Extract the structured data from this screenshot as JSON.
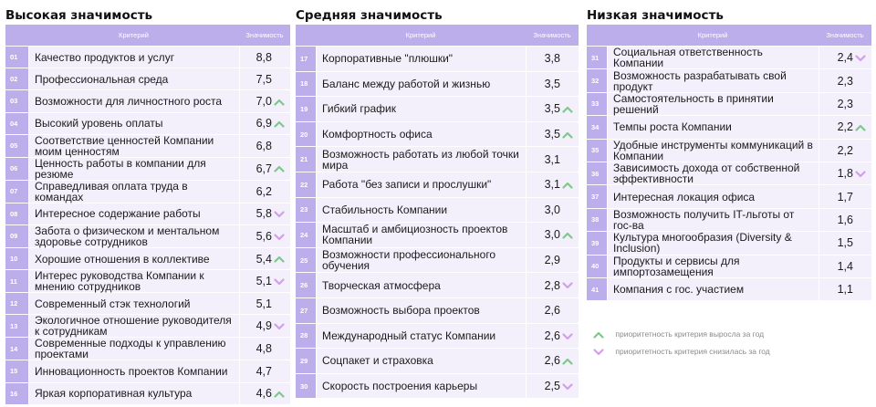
{
  "columns": {
    "criterion": "Критерий",
    "importance": "Значимость"
  },
  "colors": {
    "header": "#bcaeea",
    "row": "#f3f0fb",
    "up": "#7cc98a",
    "down": "#d29fe8"
  },
  "high": {
    "title": "Высокая значимость",
    "rows": [
      {
        "num": "01",
        "name": "Качество продуктов и услуг",
        "value": "8,8",
        "trend": ""
      },
      {
        "num": "02",
        "name": "Профессиональная среда",
        "value": "7,5",
        "trend": ""
      },
      {
        "num": "03",
        "name": "Возможности для личностного роста",
        "value": "7,0",
        "trend": "up"
      },
      {
        "num": "04",
        "name": "Высокий уровень оплаты",
        "value": "6,9",
        "trend": "up"
      },
      {
        "num": "05",
        "name": "Соответствие ценностей Компании моим ценностям",
        "value": "6,8",
        "trend": ""
      },
      {
        "num": "06",
        "name": "Ценность работы в компании для резюме",
        "value": "6,7",
        "trend": "up"
      },
      {
        "num": "07",
        "name": "Справедливая оплата труда в командах",
        "value": "6,2",
        "trend": ""
      },
      {
        "num": "08",
        "name": "Интересное содержание работы",
        "value": "5,8",
        "trend": "down"
      },
      {
        "num": "09",
        "name": "Забота о физическом и ментальном здоровье сотрудников",
        "value": "5,6",
        "trend": "down"
      },
      {
        "num": "10",
        "name": "Хорошие отношения в коллективе",
        "value": "5,4",
        "trend": "up"
      },
      {
        "num": "11",
        "name": "Интерес руководства Компании к мнению сотрудников",
        "value": "5,1",
        "trend": "down"
      },
      {
        "num": "12",
        "name": "Современный стэк технологий",
        "value": "5,1",
        "trend": ""
      },
      {
        "num": "13",
        "name": "Экологичное отношение руководителя к сотрудникам",
        "value": "4,9",
        "trend": "down"
      },
      {
        "num": "14",
        "name": "Современные подходы к управлению проектами",
        "value": "4,8",
        "trend": ""
      },
      {
        "num": "15",
        "name": "Инновационность проектов Компании",
        "value": "4,7",
        "trend": ""
      },
      {
        "num": "16",
        "name": "Яркая корпоративная культура",
        "value": "4,6",
        "trend": "up"
      }
    ]
  },
  "medium": {
    "title": "Средняя значимость",
    "rows": [
      {
        "num": "17",
        "name": "Корпоративные \"плюшки\"",
        "value": "3,8",
        "trend": ""
      },
      {
        "num": "18",
        "name": "Баланс между работой и жизнью",
        "value": "3,5",
        "trend": ""
      },
      {
        "num": "19",
        "name": "Гибкий график",
        "value": "3,5",
        "trend": "up"
      },
      {
        "num": "20",
        "name": "Комфортность офиса",
        "value": "3,5",
        "trend": "up"
      },
      {
        "num": "21",
        "name": "Возможность работать из любой точки мира",
        "value": "3,1",
        "trend": ""
      },
      {
        "num": "22",
        "name": "Работа \"без записи и прослушки\"",
        "value": "3,1",
        "trend": "up"
      },
      {
        "num": "23",
        "name": "Стабильность Компании",
        "value": "3,0",
        "trend": ""
      },
      {
        "num": "24",
        "name": "Масштаб и амбициозность проектов Компании",
        "value": "3,0",
        "trend": "up"
      },
      {
        "num": "25",
        "name": "Возможности профессионального обучения",
        "value": "2,9",
        "trend": ""
      },
      {
        "num": "26",
        "name": "Творческая атмосфера",
        "value": "2,8",
        "trend": "down"
      },
      {
        "num": "27",
        "name": "Возможность выбора проектов",
        "value": "2,6",
        "trend": ""
      },
      {
        "num": "28",
        "name": "Международный статус Компании",
        "value": "2,6",
        "trend": "down"
      },
      {
        "num": "29",
        "name": "Соцпакет и страховка",
        "value": "2,6",
        "trend": "up"
      },
      {
        "num": "30",
        "name": "Скорость построения карьеры",
        "value": "2,5",
        "trend": "down"
      }
    ]
  },
  "low": {
    "title": "Низкая значимость",
    "rows": [
      {
        "num": "31",
        "name": "Социальная ответственность Компании",
        "value": "2,4",
        "trend": "down"
      },
      {
        "num": "32",
        "name": "Возможность разрабатывать свой продукт",
        "value": "2,3",
        "trend": ""
      },
      {
        "num": "33",
        "name": "Самостоятельность в принятии решений",
        "value": "2,3",
        "trend": ""
      },
      {
        "num": "34",
        "name": "Темпы роста Компании",
        "value": "2,2",
        "trend": "up"
      },
      {
        "num": "35",
        "name": "Удобные инструменты коммуникаций в Компании",
        "value": "2,2",
        "trend": ""
      },
      {
        "num": "36",
        "name": "Зависимость дохода от собственной эффективности",
        "value": "1,8",
        "trend": "down"
      },
      {
        "num": "37",
        "name": "Интересная локация офиса",
        "value": "1,7",
        "trend": ""
      },
      {
        "num": "38",
        "name": "Возможность получить IT-льготы от гос-ва",
        "value": "1,6",
        "trend": ""
      },
      {
        "num": "39",
        "name": "Культура многообразия (Diversity & Inclusion)",
        "value": "1,5",
        "trend": ""
      },
      {
        "num": "40",
        "name": "Продукты и сервисы для импортозамещения",
        "value": "1,4",
        "trend": ""
      },
      {
        "num": "41",
        "name": "Компания с гос. участием",
        "value": "1,1",
        "trend": ""
      }
    ]
  },
  "legend": {
    "up_text": "приоритетность критерия выросла за год",
    "down_text": "приоритетность критерия снизилась за год"
  }
}
